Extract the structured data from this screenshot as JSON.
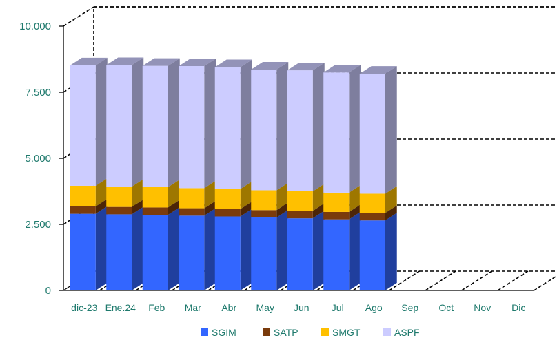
{
  "chart_data": {
    "type": "bar",
    "stacked": true,
    "three_d": true,
    "categories": [
      "dic-23",
      "Ene.24",
      "Feb",
      "Mar",
      "Abr",
      "May",
      "Jun",
      "Jul",
      "Ago",
      "Sep",
      "Oct",
      "Nov",
      "Dic"
    ],
    "series": [
      {
        "name": "SGIM",
        "color": "#3366ff",
        "values": [
          2900,
          2880,
          2860,
          2830,
          2800,
          2760,
          2730,
          2690,
          2650,
          null,
          null,
          null,
          null
        ]
      },
      {
        "name": "SATP",
        "color": "#7a3b0c",
        "values": [
          280,
          280,
          280,
          280,
          280,
          280,
          280,
          280,
          280,
          null,
          null,
          null,
          null
        ]
      },
      {
        "name": "SMGT",
        "color": "#ffc000",
        "values": [
          780,
          770,
          770,
          760,
          760,
          750,
          740,
          730,
          730,
          null,
          null,
          null,
          null
        ]
      },
      {
        "name": "ASPF",
        "color": "#ccccff",
        "values": [
          4560,
          4600,
          4590,
          4620,
          4610,
          4570,
          4580,
          4550,
          4540,
          null,
          null,
          null,
          null
        ]
      }
    ],
    "yticks": [
      "0",
      "2.500",
      "5.000",
      "7.500",
      "10.000"
    ],
    "ylim": [
      0,
      10000
    ],
    "grid": true,
    "legend_position": "bottom",
    "title": "",
    "xlabel": "",
    "ylabel": ""
  }
}
